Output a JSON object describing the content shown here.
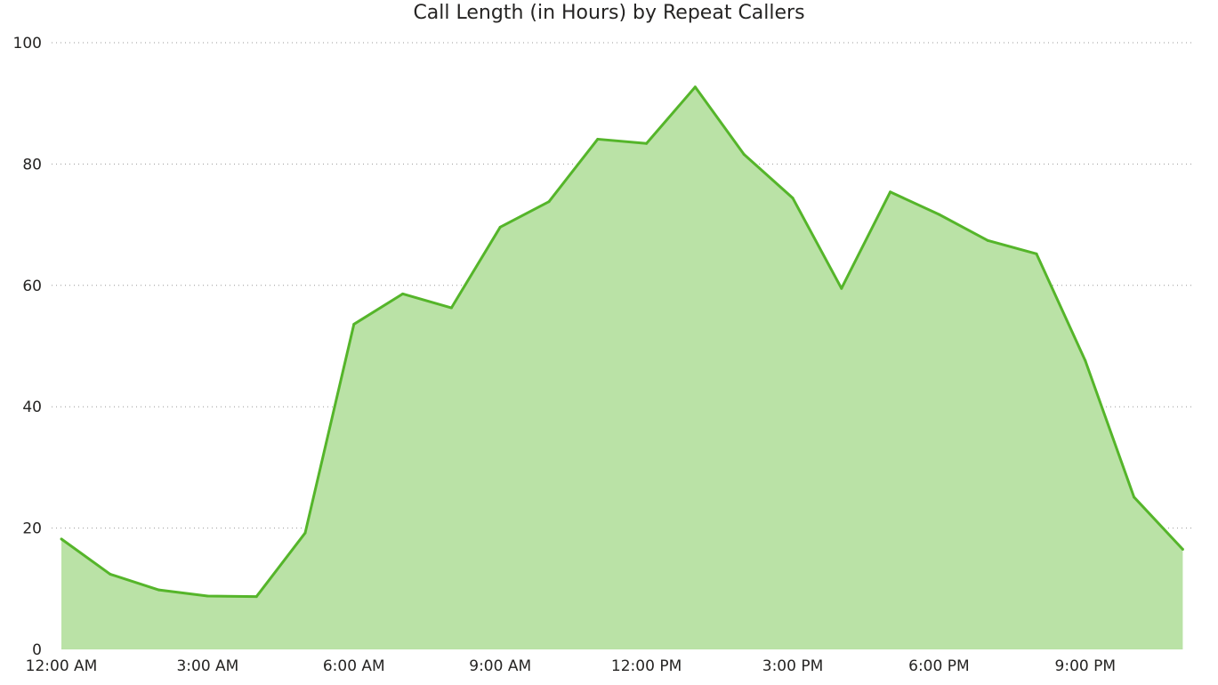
{
  "chart_data": {
    "type": "area",
    "title": "Call Length (in Hours) by Repeat Callers",
    "xlabel": "",
    "ylabel": "",
    "ylim": [
      0,
      100
    ],
    "yticks": [
      0,
      20,
      40,
      60,
      80,
      100
    ],
    "x_tick_labels": [
      "12:00 AM",
      "3:00 AM",
      "6:00 AM",
      "9:00 AM",
      "12:00 PM",
      "3:00 PM",
      "6:00 PM",
      "9:00 PM"
    ],
    "x_tick_hours": [
      0,
      3,
      6,
      9,
      12,
      15,
      18,
      21
    ],
    "x_hours": [
      0,
      1,
      2,
      3,
      4,
      5,
      6,
      7,
      8,
      9,
      10,
      11,
      12,
      13,
      14,
      15,
      16,
      17,
      18,
      19,
      20,
      21,
      22,
      23
    ],
    "grid": true,
    "series": [
      {
        "values": [
          18.2,
          12.4,
          9.8,
          8.8,
          8.7,
          19.2,
          53.6,
          58.6,
          56.3,
          69.6,
          73.8,
          84.1,
          83.4,
          92.7,
          81.6,
          74.4,
          59.5,
          75.4,
          71.7,
          67.4,
          65.2,
          47.6,
          25.1,
          16.5
        ],
        "color": "#55b52a",
        "fill": "#bae2a6"
      }
    ]
  }
}
